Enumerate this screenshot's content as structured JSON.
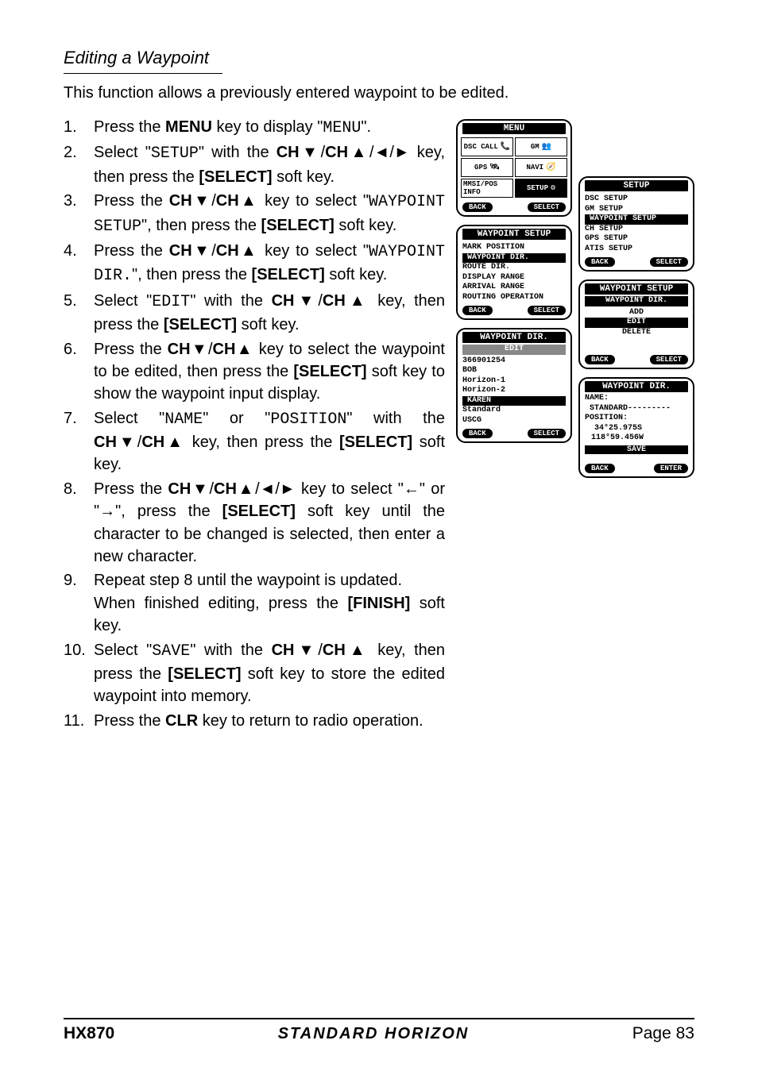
{
  "section_title": "Editing a Waypoint",
  "intro": "This function allows a previously entered waypoint to be edited.",
  "steps": [
    {
      "n": "1.",
      "html": "Press the <span class='b'>MENU</span> key to display \"<span class='mono'>MENU</span>\"."
    },
    {
      "n": "2.",
      "html": "Select \"<span class='mono'>SETUP</span>\" with the <span class='b'>CH▼</span>/<span class='b'>CH▲</span>/◄/► key, then press the <span class='b'>[SELECT]</span> soft key."
    },
    {
      "n": "3.",
      "html": "Press the <span class='b'>CH▼</span>/<span class='b'>CH▲</span> key to select \"<span class='mono'>WAYPOINT SETUP</span>\", then press the <span class='b'>[SELECT]</span> soft key."
    },
    {
      "n": "4.",
      "html": "Press the <span class='b'>CH▼</span>/<span class='b'>CH▲</span> key to select \"<span class='mono'>WAYPOINT DIR.</span>\", then press the <span class='b'>[SELECT]</span> soft key."
    },
    {
      "n": "5.",
      "html": "Select \"<span class='mono'>EDIT</span>\" with the <span class='b'>CH▼</span>/<span class='b'>CH▲</span> key, then press the <span class='b'>[SELECT]</span> soft key."
    },
    {
      "n": "6.",
      "html": "Press the <span class='b'>CH▼</span>/<span class='b'>CH▲</span> key to select the waypoint to be edited, then press the <span class='b'>[SELECT]</span> soft key to show the waypoint input display."
    },
    {
      "n": "7.",
      "html": "Select \"<span class='mono'>NAME</span>\" or \"<span class='mono'>POSITION</span>\" with the <span class='b'>CH▼</span>/<span class='b'>CH▲</span> key, then press the <span class='b'>[SELECT]</span> soft key."
    },
    {
      "n": "8.",
      "html": "Press the <span class='b'>CH▼</span>/<span class='b'>CH▲</span>/◄/► key to select \"←\" or \"→\", press the <span class='b'>[SELECT]</span> soft key until the character to be changed is selected, then enter a new character."
    },
    {
      "n": "9.",
      "html": "Repeat step 8 until the waypoint is updated.<br>When finished editing, press the <span class='b'>[FINISH]</span> soft key."
    },
    {
      "n": "10.",
      "html": "Select \"<span class='mono'>SAVE</span>\" with the <span class='b'>CH▼</span>/<span class='b'>CH▲</span> key, then press the <span class='b'>[SELECT]</span> soft key to store the edited waypoint into memory."
    },
    {
      "n": "11.",
      "html": "Press the <span class='b'>CLR</span> key to return to radio operation."
    }
  ],
  "lcd_menu": {
    "title": "MENU",
    "cells": [
      {
        "label": "DSC CALL",
        "sel": false,
        "icon": "📞"
      },
      {
        "label": "GM",
        "sel": false,
        "icon": "👥"
      },
      {
        "label": "GPS",
        "sel": false,
        "icon": "🛰"
      },
      {
        "label": "NAVI",
        "sel": false,
        "icon": "🧭"
      },
      {
        "label": "MMSI/POS INFO",
        "sel": false,
        "icon": ""
      },
      {
        "label": "SETUP",
        "sel": true,
        "icon": "⚙"
      }
    ],
    "back": "BACK",
    "select": "SELECT"
  },
  "lcd_setup": {
    "title": "SETUP",
    "items": [
      "DSC SETUP",
      "GM SETUP",
      "WAYPOINT SETUP",
      "CH SETUP",
      "GPS SETUP",
      "ATIS SETUP"
    ],
    "hl_index": 2,
    "back": "BACK",
    "select": "SELECT"
  },
  "lcd_wpsetup": {
    "title": "WAYPOINT SETUP",
    "items": [
      "MARK POSITION",
      "WAYPOINT DIR.",
      "ROUTE DIR.",
      "DISPLAY RANGE",
      "ARRIVAL RANGE",
      "ROUTING OPERATION"
    ],
    "hl_index": 1,
    "back": "BACK",
    "select": "SELECT"
  },
  "lcd_wpdir1": {
    "title": "WAYPOINT SETUP",
    "sub": "WAYPOINT DIR.",
    "items": [
      "ADD",
      "EDIT",
      "DELETE"
    ],
    "hl_index": 1,
    "back": "BACK",
    "select": "SELECT"
  },
  "lcd_wpdir2": {
    "title": "WAYPOINT DIR.",
    "sub": "EDIT",
    "items": [
      "366901254",
      "BOB",
      "Horizon-1",
      "Horizon-2",
      "KAREN",
      "Standard",
      "USCG"
    ],
    "hl_index": 4,
    "back": "BACK",
    "select": "SELECT"
  },
  "lcd_edit": {
    "title": "WAYPOINT DIR.",
    "name_label": "NAME:",
    "name_value": "STANDARD---------",
    "pos_label": "POSITION:",
    "lat": "34°25.975S",
    "lon": "118°59.456W",
    "save": "SAVE",
    "back": "BACK",
    "enter": "ENTER"
  },
  "footer": {
    "model": "HX870",
    "brand_left": "STANDARD",
    "brand_right": "HORIZON",
    "page": "Page 83"
  }
}
